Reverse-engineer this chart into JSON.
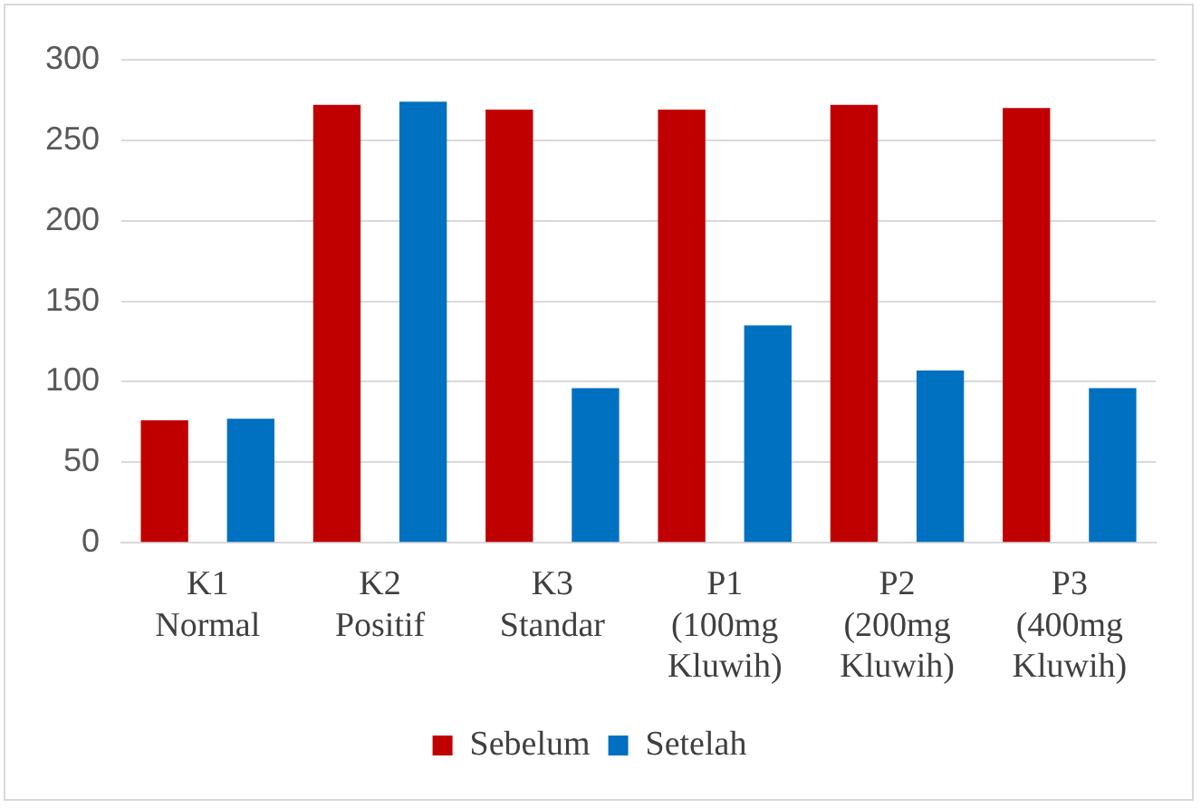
{
  "chart_data": {
    "type": "bar",
    "categories": [
      "K1\nNormal",
      "K2\nPositif",
      "K3\nStandar",
      "P1\n(100mg\nKluwih)",
      "P2\n(200mg\nKluwih)",
      "P3\n(400mg\nKluwih)"
    ],
    "series": [
      {
        "name": "Sebelum",
        "color": "#c00000",
        "values": [
          76,
          272,
          269,
          269,
          272,
          270
        ]
      },
      {
        "name": "Setelah",
        "color": "#0070c0",
        "values": [
          77,
          274,
          96,
          135,
          107,
          96
        ]
      }
    ],
    "ylim": [
      0,
      300
    ],
    "yticks": [
      0,
      50,
      100,
      150,
      200,
      250,
      300
    ],
    "grid": "y",
    "legend": "bottom"
  }
}
